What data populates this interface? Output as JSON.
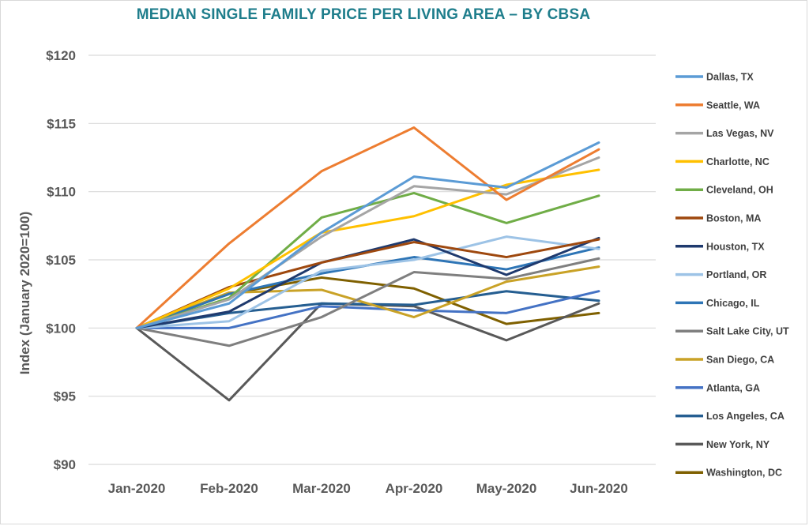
{
  "chart_data": {
    "type": "line",
    "title": "MEDIAN SINGLE FAMILY PRICE PER LIVING AREA – BY CBSA",
    "xlabel": "",
    "ylabel": "Index (January 2020=100)",
    "categories": [
      "Jan-2020",
      "Feb-2020",
      "Mar-2020",
      "Apr-2020",
      "May-2020",
      "Jun-2020"
    ],
    "ylim": [
      90,
      120
    ],
    "yticks": [
      90,
      95,
      100,
      105,
      110,
      115,
      120
    ],
    "ytick_labels": [
      "$90",
      "$95",
      "$100",
      "$105",
      "$110",
      "$115",
      "$120"
    ],
    "grid": true,
    "legend_position": "right",
    "series": [
      {
        "name": "Dallas, TX",
        "color": "#5b9bd5",
        "values": [
          100,
          101.8,
          107.0,
          111.1,
          110.3,
          113.6
        ]
      },
      {
        "name": "Seattle, WA",
        "color": "#ed7d31",
        "values": [
          100,
          106.2,
          111.5,
          114.7,
          109.4,
          113.1
        ]
      },
      {
        "name": "Las Vegas, NV",
        "color": "#a5a5a5",
        "values": [
          100,
          102.1,
          106.7,
          110.4,
          109.8,
          112.5
        ]
      },
      {
        "name": "Charlotte, NC",
        "color": "#ffc000",
        "values": [
          100,
          102.9,
          107.0,
          108.2,
          110.5,
          111.6
        ]
      },
      {
        "name": "Cleveland, OH",
        "color": "#70ad47",
        "values": [
          100,
          102.2,
          108.1,
          109.9,
          107.7,
          109.7
        ]
      },
      {
        "name": "Boston, MA",
        "color": "#9e480e",
        "values": [
          100,
          103.0,
          104.8,
          106.3,
          105.2,
          106.5
        ]
      },
      {
        "name": "Houston, TX",
        "color": "#1f3a6e",
        "values": [
          100,
          101.2,
          104.8,
          106.5,
          103.9,
          106.6
        ]
      },
      {
        "name": "Portland, OR",
        "color": "#9dc3e6",
        "values": [
          100,
          100.5,
          104.2,
          105.0,
          106.7,
          105.8
        ]
      },
      {
        "name": "Chicago, IL",
        "color": "#2e75b6",
        "values": [
          100,
          102.5,
          104.0,
          105.2,
          104.3,
          105.9
        ]
      },
      {
        "name": "Salt Lake City, UT",
        "color": "#7f7f7f",
        "values": [
          100,
          98.7,
          100.8,
          104.1,
          103.6,
          105.1
        ]
      },
      {
        "name": "San Diego, CA",
        "color": "#c9a227",
        "values": [
          100,
          102.6,
          102.8,
          100.8,
          103.4,
          104.5
        ]
      },
      {
        "name": "Atlanta, GA",
        "color": "#4472c4",
        "values": [
          100,
          100.0,
          101.6,
          101.3,
          101.1,
          102.7
        ]
      },
      {
        "name": "Los Angeles, CA",
        "color": "#255e91",
        "values": [
          100,
          101.1,
          101.8,
          101.7,
          102.7,
          102.0
        ]
      },
      {
        "name": "New York, NY",
        "color": "#595959",
        "values": [
          100,
          94.7,
          101.8,
          101.6,
          99.1,
          101.8
        ]
      },
      {
        "name": "Washington, DC",
        "color": "#7f6000",
        "values": [
          100,
          102.5,
          103.7,
          102.9,
          100.3,
          101.1
        ]
      }
    ]
  }
}
